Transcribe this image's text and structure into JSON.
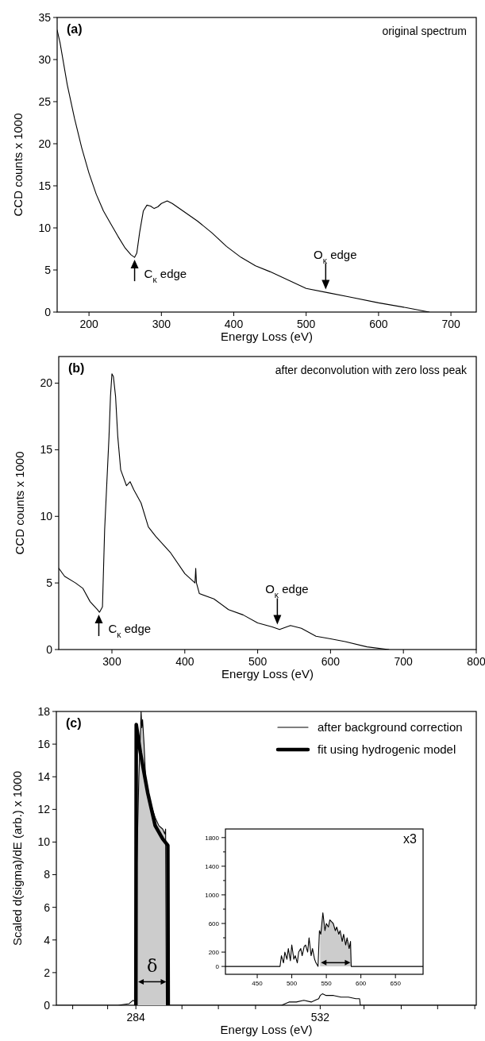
{
  "chart_data": [
    {
      "type": "line",
      "title": "(a)",
      "subtitle": "original spectrum",
      "xlabel": "Energy Loss (eV)",
      "ylabel": "CCD counts  x 1000",
      "color": "#000000",
      "x": [
        156,
        160,
        170,
        180,
        190,
        200,
        210,
        220,
        230,
        240,
        250,
        258,
        263,
        266,
        270,
        275,
        280,
        285,
        290,
        295,
        300,
        308,
        315,
        330,
        350,
        370,
        390,
        410,
        430,
        450,
        470,
        500,
        530,
        560,
        600,
        640,
        670
      ],
      "values": [
        33.5,
        32,
        27,
        23,
        19.5,
        16.5,
        14,
        12,
        10.5,
        9,
        7.6,
        6.8,
        6.5,
        7,
        9.5,
        12,
        12.7,
        12.6,
        12.3,
        12.5,
        12.9,
        13.2,
        12.9,
        12,
        10.8,
        9.4,
        7.8,
        6.5,
        5.5,
        4.8,
        4,
        2.8,
        2.3,
        1.8,
        1.1,
        0.5,
        0
      ],
      "xlim": [
        156,
        735
      ],
      "ylim": [
        0,
        35
      ],
      "xticks": [
        200,
        300,
        400,
        500,
        600,
        700
      ],
      "yticks": [
        0,
        5,
        10,
        15,
        20,
        25,
        30,
        35
      ],
      "annotations": [
        {
          "text": "C$_{κ}$ edge",
          "x": 263,
          "y": 6.5
        },
        {
          "text": "O$_{κ}$ edge",
          "x": 527,
          "y": 2.4
        }
      ]
    },
    {
      "type": "line",
      "title": "(b)",
      "subtitle": "after deconvolution with zero loss peak",
      "xlabel": "Energy Loss (eV)",
      "ylabel": "CCD counts  x 1000",
      "color": "#000000",
      "x": [
        227,
        235,
        250,
        260,
        270,
        280,
        283,
        287,
        290,
        293,
        296,
        298,
        300,
        302,
        305,
        308,
        312,
        320,
        325,
        330,
        340,
        350,
        360,
        380,
        400,
        414,
        415,
        416,
        420,
        440,
        460,
        480,
        500,
        520,
        530,
        545,
        560,
        580,
        600,
        620,
        650,
        680
      ],
      "values": [
        6.1,
        5.5,
        5,
        4.6,
        3.6,
        3,
        2.8,
        3.2,
        9,
        12.5,
        16,
        19,
        20.7,
        20.5,
        19,
        16,
        13.5,
        12.3,
        12.6,
        12,
        11,
        9.2,
        8.5,
        7.3,
        5.7,
        5,
        6.1,
        5,
        4.2,
        3.8,
        3,
        2.6,
        2,
        1.7,
        1.5,
        1.8,
        1.6,
        1,
        0.8,
        0.6,
        0.2,
        0
      ],
      "xlim": [
        227,
        800
      ],
      "ylim": [
        0,
        22
      ],
      "xticks": [
        300,
        400,
        500,
        600,
        700,
        800
      ],
      "yticks": [
        0,
        5,
        10,
        15,
        20
      ],
      "annotations": [
        {
          "text": "C$_{κ}$ edge",
          "x": 282,
          "y": 2.8
        },
        {
          "text": "O$_{κ}$ edge",
          "x": 527,
          "y": 1.7
        }
      ]
    },
    {
      "type": "line",
      "title": "(c)",
      "xlabel": "Energy Loss (eV)",
      "ylabel": "Scaled d(sigma)/dE  (arb.) x 1000",
      "legend": "top right",
      "series": [
        {
          "name": "after background correction",
          "color": "#000000",
          "x": [
            177,
            260,
            275,
            280,
            284,
            285,
            286,
            288,
            290,
            291,
            292,
            293,
            295,
            297,
            300,
            305,
            310,
            315,
            320,
            323,
            324,
            325,
            400,
            480,
            485,
            490,
            500,
            510,
            520,
            525,
            530,
            532,
            535,
            540,
            550,
            560,
            570,
            580,
            585,
            586,
            600,
            742
          ],
          "values": [
            0,
            0,
            0.1,
            0.3,
            0.2,
            8,
            10,
            14,
            16.5,
            18,
            17,
            17.5,
            16,
            14,
            13,
            12.2,
            11.5,
            11,
            10.8,
            10.5,
            10.8,
            0,
            0,
            0,
            0.1,
            0.2,
            0.2,
            0.3,
            0.2,
            0.3,
            0.4,
            0.6,
            0.7,
            0.6,
            0.6,
            0.5,
            0.5,
            0.4,
            0.4,
            0,
            0,
            0
          ]
        },
        {
          "name": "fit using hydrogenic model",
          "color": "#000000",
          "x": [
            284,
            284.5,
            290,
            300,
            310,
            320,
            327,
            327.5
          ],
          "values": [
            0,
            17.2,
            15.5,
            13,
            11,
            10.2,
            9.8,
            0
          ]
        }
      ],
      "bands": [
        {
          "axis": "x",
          "from": 286,
          "to": 326,
          "label": "δ",
          "color": "#cccccc"
        }
      ],
      "xlim": [
        177,
        742
      ],
      "ylim": [
        0,
        18
      ],
      "xticks": [
        {
          "value": 199,
          "label": null
        },
        {
          "value": 246,
          "label": null
        },
        284,
        {
          "value": 346,
          "label": null
        },
        {
          "value": 395,
          "label": null
        },
        {
          "value": 445,
          "label": null
        },
        532,
        {
          "value": 591,
          "label": null
        },
        {
          "value": 641,
          "label": null
        },
        {
          "value": 690,
          "label": null
        },
        {
          "value": 740,
          "label": null
        }
      ],
      "yticks": [
        0,
        2,
        4,
        6,
        8,
        10,
        12,
        14,
        16,
        18
      ]
    },
    {
      "type": "line",
      "color": "#000000",
      "x": [
        404,
        480,
        483,
        485,
        488,
        490,
        493,
        495,
        498,
        500,
        503,
        505,
        508,
        510,
        513,
        515,
        518,
        520,
        523,
        525,
        528,
        530,
        533,
        535,
        538,
        540,
        542,
        545,
        548,
        550,
        553,
        555,
        558,
        560,
        563,
        565,
        568,
        570,
        573,
        575,
        578,
        580,
        583,
        585,
        586,
        690
      ],
      "values": [
        0,
        0,
        0,
        150,
        50,
        200,
        100,
        250,
        80,
        300,
        100,
        150,
        50,
        200,
        250,
        150,
        280,
        300,
        200,
        400,
        150,
        250,
        100,
        50,
        0,
        500,
        450,
        750,
        500,
        600,
        550,
        650,
        620,
        600,
        500,
        550,
        450,
        500,
        350,
        450,
        300,
        400,
        250,
        350,
        0,
        0
      ],
      "bands": [
        {
          "axis": "x",
          "from": 541,
          "to": 586,
          "color": "#cccccc"
        }
      ],
      "annotations": [
        "x3"
      ],
      "xlim": [
        404,
        690
      ],
      "ylim": [
        -110,
        1920
      ],
      "xticks": [
        450,
        500,
        550,
        600,
        650
      ],
      "yticks": [
        0,
        200,
        {
          "value": 400,
          "label": null
        },
        600,
        {
          "value": 800,
          "label": null
        },
        1000,
        {
          "value": 1200,
          "label": null
        },
        1400,
        {
          "value": 1600,
          "label": null
        },
        1800
      ]
    }
  ]
}
